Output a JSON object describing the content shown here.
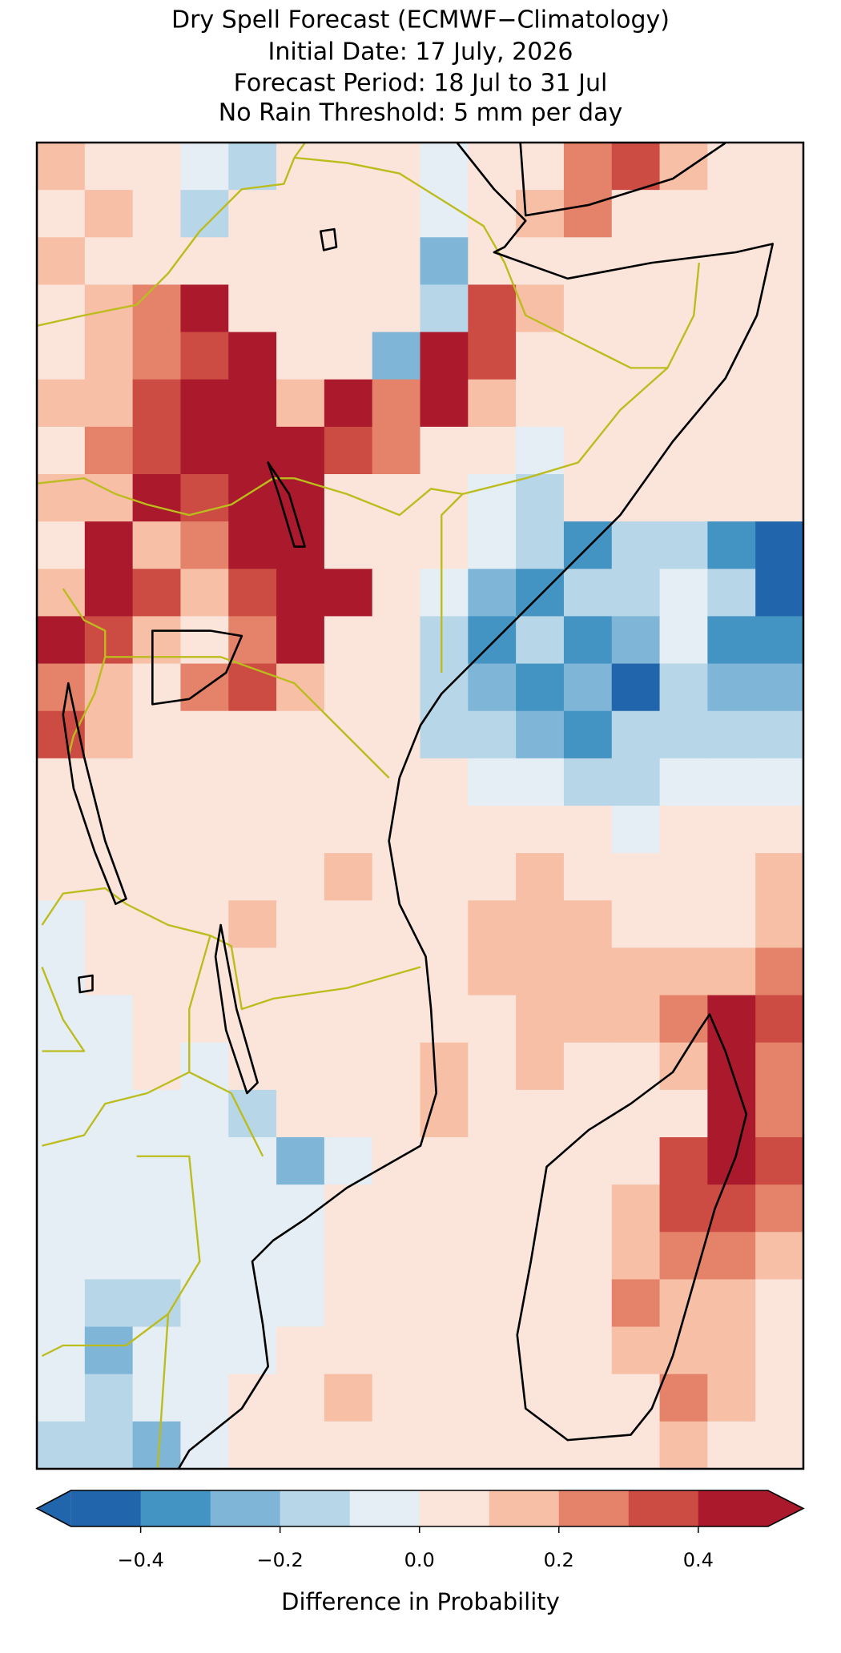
{
  "title_lines": [
    "Dry Spell Forecast (ECMWF−Climatology)",
    "Initial Date: 17 July, 2026",
    "Forecast Period: 18 Jul to 31 Jul",
    "No Rain Threshold: 5 mm per day"
  ],
  "map": {
    "grid": [
      [
        0.12,
        0.08,
        0.05,
        -0.05,
        -0.12,
        0.02,
        0.05,
        0.02,
        -0.05,
        0.05,
        0.05,
        0.25,
        0.35,
        0.15,
        0.05,
        0.05
      ],
      [
        0.05,
        0.12,
        0.05,
        -0.15,
        0.05,
        0.05,
        0.02,
        0.02,
        -0.05,
        0.05,
        0.15,
        0.25,
        0.05,
        0.05,
        0.05,
        0.05
      ],
      [
        0.15,
        0.05,
        0.05,
        0.05,
        0.05,
        0.02,
        0.05,
        0.05,
        -0.25,
        0.05,
        0.05,
        0.05,
        0.05,
        0.05,
        0.05,
        0.05
      ],
      [
        0.05,
        0.12,
        0.25,
        0.45,
        0.05,
        0.05,
        0.05,
        0.05,
        -0.15,
        0.35,
        0.15,
        0.05,
        0.05,
        0.05,
        0.05,
        0.05
      ],
      [
        0.05,
        0.15,
        0.25,
        0.35,
        0.45,
        0.05,
        0.05,
        -0.3,
        0.45,
        0.35,
        0.05,
        0.05,
        0.05,
        0.05,
        0.05,
        0.05
      ],
      [
        0.12,
        0.15,
        0.35,
        0.45,
        0.45,
        0.15,
        0.45,
        0.25,
        0.45,
        0.15,
        0.05,
        0.05,
        0.05,
        0.02,
        0.05,
        0.05
      ],
      [
        0.05,
        0.25,
        0.35,
        0.45,
        0.45,
        0.45,
        0.35,
        0.25,
        0.05,
        0.02,
        -0.05,
        0.05,
        0.05,
        0.05,
        0.05,
        0.05
      ],
      [
        0.12,
        0.15,
        0.45,
        0.35,
        0.45,
        0.45,
        0.05,
        0.05,
        0.05,
        -0.05,
        -0.15,
        0.02,
        0.05,
        0.02,
        0.05,
        0.05
      ],
      [
        0.05,
        0.45,
        0.15,
        0.25,
        0.45,
        0.45,
        0.05,
        0.05,
        0.02,
        -0.05,
        -0.15,
        -0.35,
        -0.2,
        -0.15,
        -0.35,
        -0.45
      ],
      [
        0.15,
        0.45,
        0.35,
        0.15,
        0.35,
        0.45,
        0.45,
        0.05,
        -0.05,
        -0.25,
        -0.4,
        -0.2,
        -0.15,
        -0.1,
        -0.2,
        -0.45
      ],
      [
        0.45,
        0.35,
        0.15,
        0.05,
        0.25,
        0.45,
        0.05,
        0.05,
        -0.15,
        -0.4,
        -0.2,
        -0.35,
        -0.25,
        -0.05,
        -0.35,
        -0.35
      ],
      [
        0.25,
        0.15,
        0.05,
        0.25,
        0.35,
        0.15,
        0.05,
        0.05,
        -0.2,
        -0.25,
        -0.35,
        -0.3,
        -0.45,
        -0.15,
        -0.25,
        -0.25
      ],
      [
        0.35,
        0.15,
        0.05,
        0.05,
        0.05,
        0.05,
        0.05,
        0.05,
        -0.15,
        -0.15,
        -0.25,
        -0.35,
        -0.15,
        -0.15,
        -0.15,
        -0.2
      ],
      [
        0.05,
        0.05,
        0.05,
        0.05,
        0.05,
        0.05,
        0.05,
        0.05,
        0.02,
        -0.05,
        -0.1,
        -0.15,
        -0.15,
        -0.05,
        -0.05,
        -0.05
      ],
      [
        0.05,
        0.05,
        0.05,
        0.05,
        0.05,
        0.05,
        0.05,
        0.02,
        0.05,
        0.02,
        0.05,
        0.05,
        -0.05,
        0.05,
        0.02,
        0.05
      ],
      [
        0.05,
        0.05,
        0.05,
        0.05,
        0.05,
        0.05,
        0.15,
        0.05,
        0.05,
        0.05,
        0.15,
        0.05,
        0.05,
        0.05,
        0.05,
        0.15
      ],
      [
        -0.05,
        0.05,
        0.05,
        0.05,
        0.15,
        0.05,
        0.05,
        0.05,
        0.05,
        0.15,
        0.15,
        0.15,
        0.05,
        0.05,
        0.05,
        0.15
      ],
      [
        -0.05,
        0.05,
        0.05,
        0.05,
        0.05,
        0.05,
        0.05,
        0.05,
        0.05,
        0.15,
        0.15,
        0.15,
        0.15,
        0.15,
        0.15,
        0.25
      ],
      [
        -0.05,
        -0.05,
        0.05,
        0.05,
        0.05,
        0.05,
        0.05,
        0.05,
        0.05,
        0.05,
        0.15,
        0.15,
        0.15,
        0.25,
        0.45,
        0.35
      ],
      [
        -0.05,
        -0.05,
        0.05,
        -0.05,
        0.05,
        0.05,
        0.05,
        0.05,
        0.15,
        0.05,
        0.15,
        0.05,
        0.05,
        0.15,
        0.45,
        0.25
      ],
      [
        -0.05,
        -0.05,
        -0.05,
        -0.05,
        -0.15,
        0.05,
        0.05,
        0.05,
        0.15,
        0.05,
        0.05,
        0.05,
        0.05,
        0.05,
        0.45,
        0.25
      ],
      [
        -0.05,
        -0.05,
        -0.05,
        -0.05,
        -0.05,
        -0.25,
        -0.05,
        0.05,
        0.05,
        0.05,
        0.05,
        0.05,
        0.05,
        0.35,
        0.45,
        0.35
      ],
      [
        -0.05,
        -0.05,
        -0.05,
        -0.05,
        -0.05,
        -0.05,
        0.05,
        0.05,
        0.05,
        0.05,
        0.05,
        0.05,
        0.15,
        0.35,
        0.35,
        0.25
      ],
      [
        -0.05,
        -0.05,
        -0.05,
        -0.05,
        -0.05,
        -0.05,
        0.05,
        0.05,
        0.05,
        0.05,
        0.05,
        0.05,
        0.15,
        0.25,
        0.25,
        0.15
      ],
      [
        -0.05,
        -0.15,
        -0.15,
        -0.05,
        -0.05,
        -0.05,
        0.05,
        0.05,
        0.05,
        0.05,
        0.05,
        0.05,
        0.25,
        0.15,
        0.15,
        0.05
      ],
      [
        -0.05,
        -0.25,
        -0.05,
        -0.05,
        -0.05,
        0.05,
        0.05,
        0.05,
        0.05,
        0.05,
        0.05,
        0.05,
        0.15,
        0.15,
        0.15,
        0.05
      ],
      [
        -0.05,
        -0.15,
        -0.05,
        -0.05,
        0.05,
        0.05,
        0.15,
        0.05,
        0.05,
        0.05,
        0.05,
        0.05,
        0.05,
        0.25,
        0.15,
        0.05
      ],
      [
        -0.15,
        -0.15,
        -0.25,
        -0.05,
        0.05,
        0.05,
        0.05,
        0.05,
        0.05,
        0.05,
        0.05,
        0.05,
        0.05,
        0.15,
        0.05,
        0.05
      ]
    ],
    "colorbar": {
      "bounds": [
        -0.5,
        -0.4,
        -0.3,
        -0.2,
        -0.1,
        0,
        0.1,
        0.2,
        0.3,
        0.4,
        0.5
      ],
      "colors": [
        "#2166ac",
        "#4393c3",
        "#7fb6d8",
        "#b7d6e8",
        "#e4eef4",
        "#fbe4da",
        "#f6bfa6",
        "#e5836a",
        "#cc4c44",
        "#aa1a2c"
      ],
      "ticks": [
        {
          "value": -0.4,
          "label": "−0.4"
        },
        {
          "value": -0.2,
          "label": "−0.2"
        },
        {
          "value": 0,
          "label": "0.0"
        },
        0.2,
        0.4
      ],
      "label": "Difference in Probability"
    }
  }
}
